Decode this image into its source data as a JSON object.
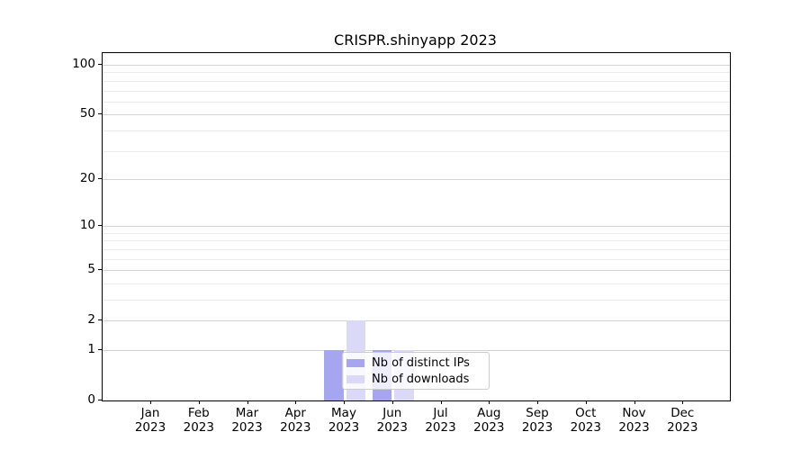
{
  "chart_data": {
    "type": "bar",
    "title": "CRISPR.shinyapp 2023",
    "x_tick_months": [
      "Jan",
      "Feb",
      "Mar",
      "Apr",
      "May",
      "Jun",
      "Jul",
      "Aug",
      "Sep",
      "Oct",
      "Nov",
      "Dec"
    ],
    "x_tick_year": "2023",
    "series": [
      {
        "name": "Nb of distinct IPs",
        "color": "#a5a5f0",
        "values": [
          0,
          0,
          0,
          0,
          1,
          1,
          0,
          0,
          0,
          0,
          0,
          0
        ]
      },
      {
        "name": "Nb of downloads",
        "color": "#dadaf8",
        "values": [
          0,
          0,
          0,
          0,
          2,
          1,
          0,
          0,
          0,
          0,
          0,
          0
        ]
      }
    ],
    "y_axis": {
      "scale": "log1p",
      "ticks": [
        0,
        1,
        2,
        5,
        10,
        20,
        50,
        100
      ],
      "gridlines": [
        1,
        2,
        3,
        4,
        5,
        6,
        7,
        8,
        9,
        10,
        20,
        30,
        40,
        50,
        60,
        70,
        80,
        90,
        100
      ],
      "ylim": [
        0,
        120
      ]
    },
    "legend": {
      "position": "lower center",
      "entries": [
        "Nb of distinct IPs",
        "Nb of downloads"
      ]
    },
    "colors": {
      "frame": "#000000",
      "background": "#ffffff",
      "major_grid": "#d3d3d3",
      "minor_grid": "#ebebeb",
      "legend_border": "#cccccc"
    }
  }
}
